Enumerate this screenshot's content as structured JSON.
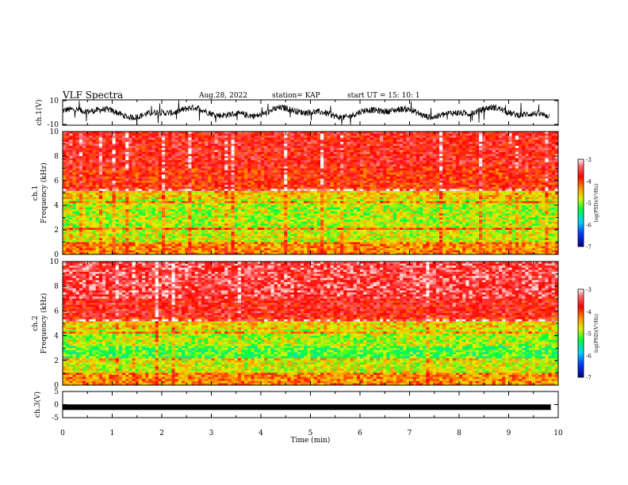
{
  "header": {
    "title": "VLF Spectra",
    "date": "Aug.28, 2022",
    "station": "station= KAP",
    "start": "start  UT =  15: 10: 1"
  },
  "chart_data": [
    {
      "type": "line",
      "ylabel": "ch.1(V)",
      "x_range": [
        0,
        10
      ],
      "ylim": [
        -10,
        10
      ],
      "yticks": [
        "10",
        "-10"
      ],
      "x_end": 9.83
    },
    {
      "type": "heatmap",
      "ylabel": "ch.1\nFrequency  (kHz)",
      "xlim": [
        0,
        10
      ],
      "ylim": [
        0,
        10
      ],
      "yticks": [
        "0",
        "2",
        "4",
        "6",
        "8",
        "10"
      ],
      "colorbar": {
        "label": "log(PSD)(V²/Hz)",
        "range": [
          -7,
          -3
        ],
        "ticks": [
          "-3",
          "-4",
          "-5",
          "-6",
          "-7"
        ]
      }
    },
    {
      "type": "heatmap",
      "ylabel": "ch.2\nFrequency  (kHz)",
      "xlim": [
        0,
        10
      ],
      "ylim": [
        0,
        10
      ],
      "yticks": [
        "0",
        "2",
        "4",
        "6",
        "8",
        "10"
      ],
      "colorbar": {
        "label": "log(PSD)(V²/Hz)",
        "range": [
          -7,
          -3
        ],
        "ticks": [
          "-3",
          "-4",
          "-5",
          "-6",
          "-7"
        ]
      }
    },
    {
      "type": "line",
      "ylabel": "ch.3(V)",
      "xlim": [
        0,
        10
      ],
      "ylim": [
        -5,
        5
      ],
      "yticks": [
        "5",
        "0",
        "-5"
      ],
      "xticks": [
        "0",
        "1",
        "2",
        "3",
        "4",
        "5",
        "6",
        "7",
        "8",
        "9",
        "10"
      ],
      "xlabel": "Time  (min)",
      "level": -1
    }
  ]
}
